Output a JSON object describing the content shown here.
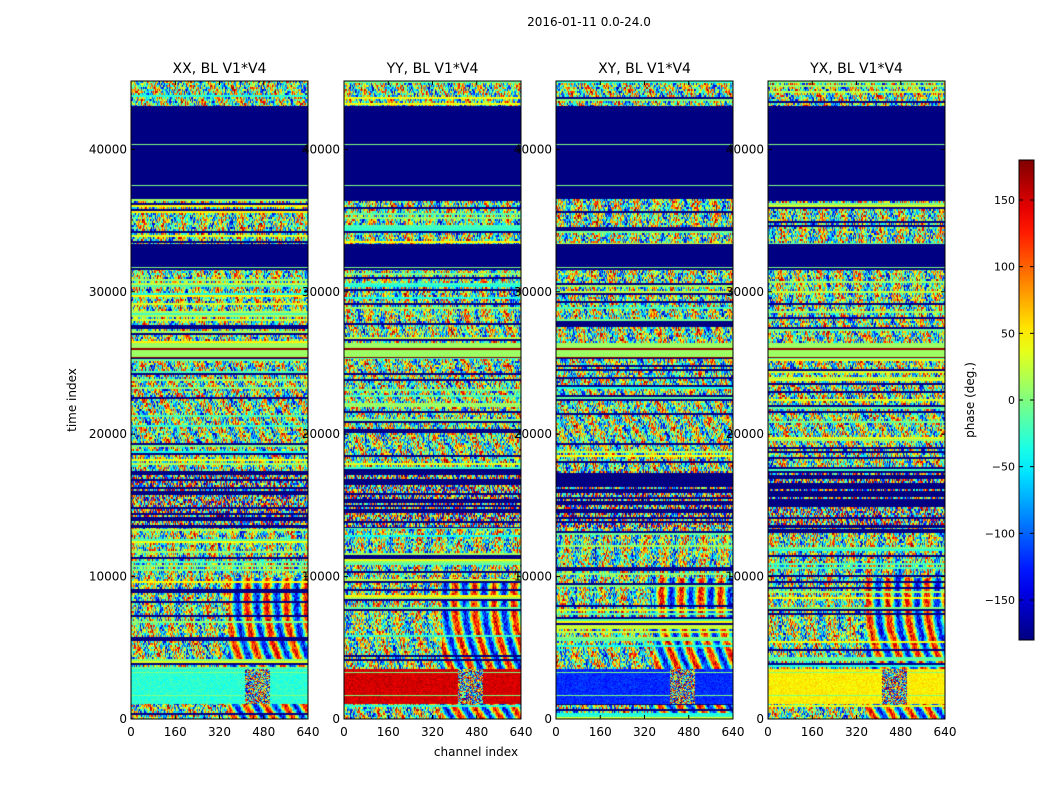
{
  "figure": {
    "suptitle": "2016-01-11 0.0-24.0",
    "ylabel": "time index",
    "xlabel": "channel index"
  },
  "chart_data": [
    {
      "type": "heatmap",
      "title": "XX, BL V1*V4",
      "xlabel": "",
      "ylabel": "time index",
      "xlim": [
        0,
        640
      ],
      "ylim": [
        0,
        44800
      ],
      "xticks": [
        "0",
        "160",
        "320",
        "480",
        "640"
      ],
      "yticks": [
        "0",
        "10000",
        "20000",
        "30000",
        "40000"
      ],
      "dominant_bands": [
        {
          "y_range": [
            0,
            1000
          ],
          "phase": "mixed"
        },
        {
          "y_range": [
            1000,
            3500
          ],
          "phase": -30
        },
        {
          "y_range": [
            25400,
            26400
          ],
          "phase": 10
        },
        {
          "y_range": [
            36500,
            43000
          ],
          "phase": -180
        }
      ]
    },
    {
      "type": "heatmap",
      "title": "YY, BL V1*V4",
      "xlabel": "channel index",
      "ylabel": "",
      "xlim": [
        0,
        640
      ],
      "ylim": [
        0,
        44800
      ],
      "xticks": [
        "0",
        "160",
        "320",
        "480",
        "640"
      ],
      "yticks": [
        "0",
        "10000",
        "20000",
        "30000",
        "40000"
      ],
      "dominant_bands": [
        {
          "y_range": [
            0,
            1000
          ],
          "phase": "mixed"
        },
        {
          "y_range": [
            1000,
            3500
          ],
          "phase": 150
        },
        {
          "y_range": [
            25400,
            26400
          ],
          "phase": 10
        },
        {
          "y_range": [
            36500,
            43000
          ],
          "phase": -180
        }
      ]
    },
    {
      "type": "heatmap",
      "title": "XY, BL V1*V4",
      "xlabel": "",
      "ylabel": "",
      "xlim": [
        0,
        640
      ],
      "ylim": [
        0,
        44800
      ],
      "xticks": [
        "0",
        "160",
        "320",
        "480",
        "640"
      ],
      "yticks": [
        "0",
        "10000",
        "20000",
        "30000",
        "40000"
      ],
      "dominant_bands": [
        {
          "y_range": [
            0,
            1000
          ],
          "phase": "mixed"
        },
        {
          "y_range": [
            1000,
            3500
          ],
          "phase": -120
        },
        {
          "y_range": [
            25400,
            26400
          ],
          "phase": 10
        },
        {
          "y_range": [
            36500,
            43000
          ],
          "phase": -180
        }
      ]
    },
    {
      "type": "heatmap",
      "title": "YX, BL V1*V4",
      "xlabel": "",
      "ylabel": "",
      "xlim": [
        0,
        640
      ],
      "ylim": [
        0,
        44800
      ],
      "xticks": [
        "0",
        "160",
        "320",
        "480",
        "640"
      ],
      "yticks": [
        "0",
        "10000",
        "20000",
        "30000",
        "40000"
      ],
      "dominant_bands": [
        {
          "y_range": [
            0,
            1000
          ],
          "phase": "mixed"
        },
        {
          "y_range": [
            1000,
            3500
          ],
          "phase": 50
        },
        {
          "y_range": [
            25400,
            26400
          ],
          "phase": 10
        },
        {
          "y_range": [
            36500,
            43000
          ],
          "phase": -180
        }
      ]
    }
  ],
  "colorbar": {
    "label": "phase (deg.)",
    "range": [
      -180,
      180
    ],
    "ticks": [
      "150",
      "100",
      "50",
      "0",
      "−50",
      "−100",
      "−150"
    ],
    "tick_values": [
      150,
      100,
      50,
      0,
      -50,
      -100,
      -150
    ],
    "colormap": "jet"
  }
}
